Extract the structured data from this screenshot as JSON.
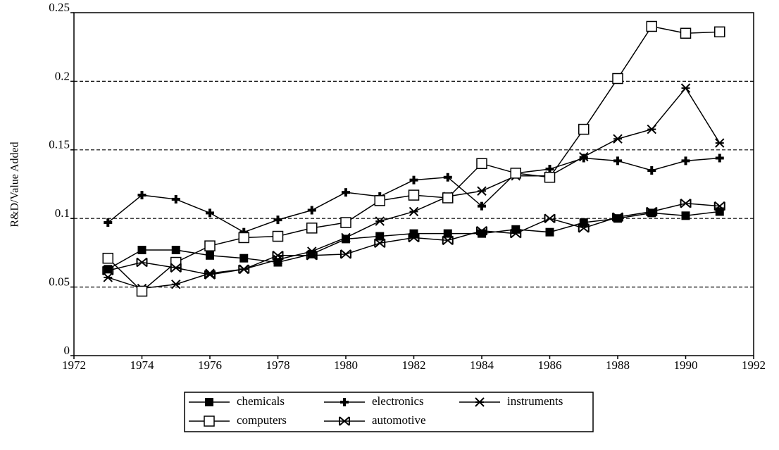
{
  "chart_data": {
    "type": "line",
    "y_label": "R&D/Value Added",
    "x": [
      1973,
      1974,
      1975,
      1976,
      1977,
      1978,
      1979,
      1980,
      1981,
      1982,
      1983,
      1984,
      1985,
      1986,
      1987,
      1988,
      1989,
      1990,
      1991
    ],
    "xlim": [
      1972,
      1992
    ],
    "xticks": [
      1972,
      1974,
      1976,
      1978,
      1980,
      1982,
      1984,
      1986,
      1988,
      1990,
      1992
    ],
    "ylim": [
      0,
      0.25
    ],
    "yticks": [
      0,
      0.05,
      0.1,
      0.15,
      0.2,
      0.25
    ],
    "grid": true,
    "legend": "bottom",
    "series": [
      {
        "name": "chemicals",
        "color": "#000",
        "marker": "filled-square",
        "values": [
          0.063,
          0.077,
          0.077,
          0.073,
          0.071,
          0.068,
          0.074,
          0.085,
          0.087,
          0.089,
          0.089,
          0.089,
          0.092,
          0.09,
          0.097,
          0.1,
          0.104,
          0.102,
          0.105
        ]
      },
      {
        "name": "electronics",
        "color": "#000",
        "marker": "plus",
        "values": [
          0.097,
          0.117,
          0.114,
          0.104,
          0.09,
          0.099,
          0.106,
          0.119,
          0.116,
          0.128,
          0.13,
          0.109,
          0.133,
          0.136,
          0.144,
          0.142,
          0.135,
          0.142,
          0.144
        ]
      },
      {
        "name": "instruments",
        "color": "#000",
        "marker": "asterisk",
        "values": [
          0.057,
          0.049,
          0.052,
          0.06,
          0.063,
          0.07,
          0.076,
          0.086,
          0.098,
          0.105,
          0.116,
          0.12,
          0.131,
          0.131,
          0.145,
          0.158,
          0.165,
          0.195,
          0.155
        ]
      },
      {
        "name": "computers",
        "color": "#000",
        "marker": "open-square",
        "values": [
          0.071,
          0.047,
          0.068,
          0.08,
          0.086,
          0.087,
          0.093,
          0.097,
          0.113,
          0.117,
          0.115,
          0.14,
          0.133,
          0.13,
          0.165,
          0.202,
          0.24,
          0.235,
          0.236
        ]
      },
      {
        "name": "automotive",
        "color": "#000",
        "marker": "bowtie",
        "values": [
          0.062,
          0.068,
          0.064,
          0.059,
          0.063,
          0.073,
          0.073,
          0.074,
          0.082,
          0.086,
          0.084,
          0.091,
          0.089,
          0.1,
          0.093,
          0.101,
          0.105,
          0.111,
          0.109
        ]
      }
    ]
  }
}
